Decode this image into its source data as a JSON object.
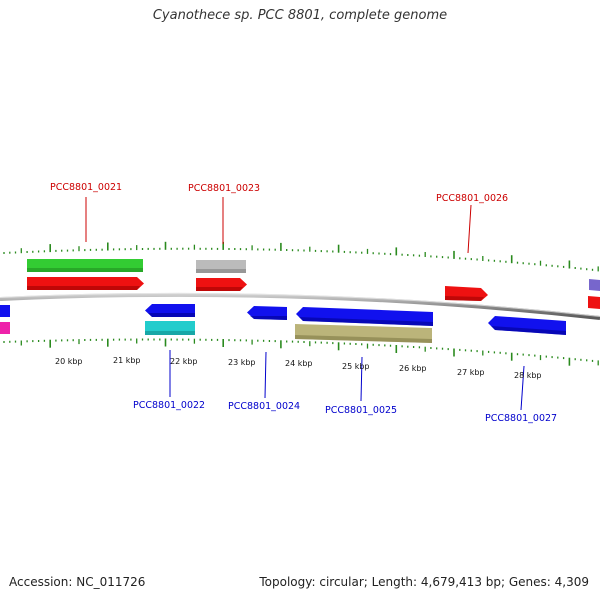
{
  "title": "Cyanothece sp. PCC 8801, complete genome",
  "footer": {
    "accession": "Accession: NC_011726",
    "topology": "Topology: circular; Length: 4,679,413 bp; Genes: 4,309"
  },
  "scale_labels": [
    "20 kbp",
    "21 kbp",
    "22 kbp",
    "23 kbp",
    "24 kbp",
    "25 kbp",
    "26 kbp",
    "27 kbp",
    "28 kbp"
  ],
  "gene_labels": {
    "forward": [
      "PCC8801_0021",
      "PCC8801_0023",
      "PCC8801_0026"
    ],
    "reverse": [
      "PCC8801_0022",
      "PCC8801_0024",
      "PCC8801_0025",
      "PCC8801_0027"
    ]
  },
  "colors": {
    "forward_label": "#cc0000",
    "reverse_label": "#0000cc",
    "tick": "#2a8a1e",
    "backbone": "#888888",
    "cds_forward": "#ee1111",
    "cds_reverse": "#1111ee",
    "gene_green": "#33cc33",
    "gene_grey": "#bbbbbb",
    "gene_cyan": "#22cccc",
    "gene_olive": "#bbb47a",
    "gene_magenta": "#ee22aa",
    "gene_purple": "#7766cc"
  }
}
